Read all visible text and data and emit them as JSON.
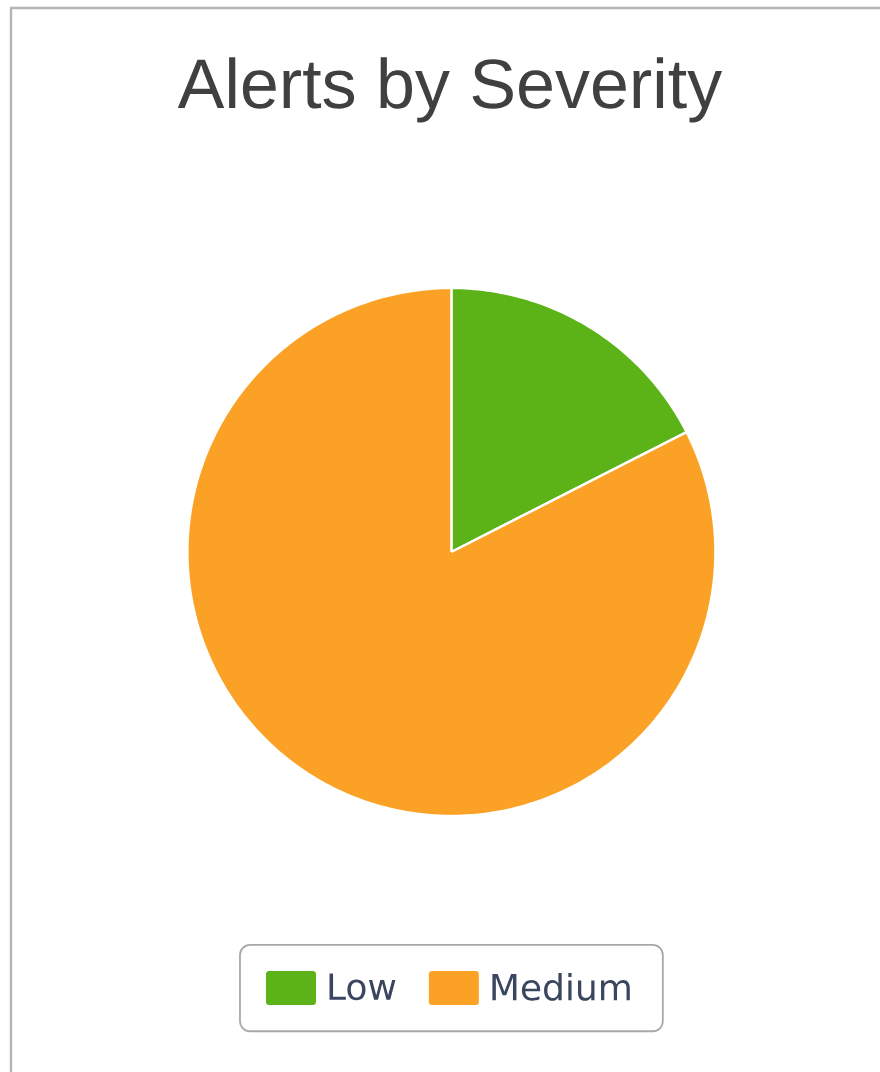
{
  "chart_data": {
    "type": "pie",
    "title": "Alerts by Severity",
    "categories": [
      "Low",
      "Medium"
    ],
    "values": [
      17.5,
      82.5
    ],
    "colors": [
      "#5bb318",
      "#fba226"
    ],
    "legend": "bottom"
  }
}
